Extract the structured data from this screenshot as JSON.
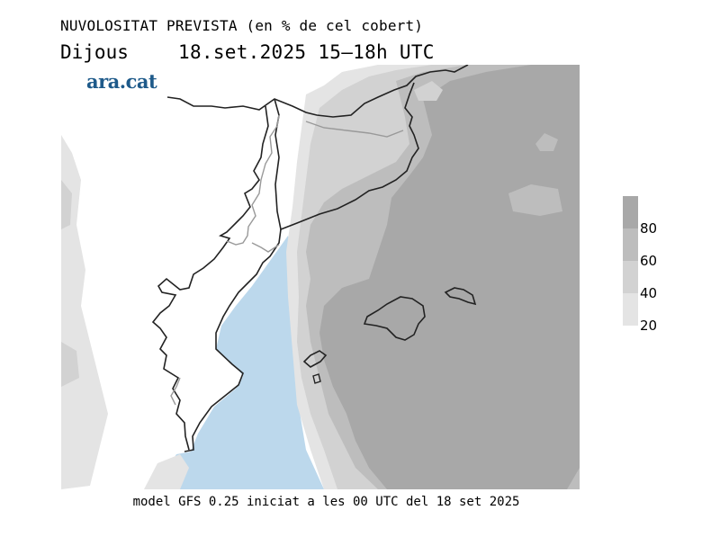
{
  "header": {
    "title": "NUVOLOSITAT PREVISTA (en % de cel cobert)",
    "day": "Dijous",
    "datetime": "18.set.2025 15–18h UTC"
  },
  "logo": "ara.cat",
  "footer": "model GFS 0.25 iniciat a les 00 UTC del 18 set 2025",
  "legend": {
    "ticks": [
      "80",
      "60",
      "40",
      "20"
    ],
    "colors": [
      "#a8a8a8",
      "#bdbdbd",
      "#d2d2d2",
      "#e4e4e4"
    ]
  },
  "map": {
    "sea_color": "#bcd8ec",
    "land_color": "#ffffff",
    "cloud_levels": {
      "0-20": "#ffffff",
      "20-40": "#e4e4e4",
      "40-60": "#d2d2d2",
      "60-80": "#bdbdbd",
      "80-100": "#a8a8a8"
    }
  }
}
